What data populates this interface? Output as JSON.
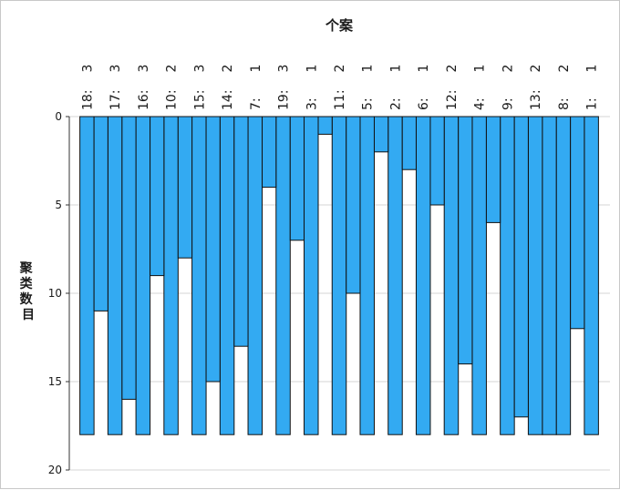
{
  "chart_data": {
    "type": "icicle",
    "title": "个案",
    "ylabel": "聚类数目",
    "ylim": [
      0,
      20
    ],
    "y_ticks": [
      "0",
      "5",
      "10",
      "15",
      "20"
    ],
    "max_clusters": 18,
    "cases": [
      {
        "case": "18:",
        "cluster": "3",
        "join_level": 11
      },
      {
        "case": "17:",
        "cluster": "3",
        "join_level": 16
      },
      {
        "case": "16:",
        "cluster": "3",
        "join_level": 9
      },
      {
        "case": "10:",
        "cluster": "2",
        "join_level": 8
      },
      {
        "case": "15:",
        "cluster": "3",
        "join_level": 15
      },
      {
        "case": "14:",
        "cluster": "2",
        "join_level": 13
      },
      {
        "case": "7:",
        "cluster": "1",
        "join_level": 4
      },
      {
        "case": "19:",
        "cluster": "3",
        "join_level": 7
      },
      {
        "case": "3:",
        "cluster": "1",
        "join_level": 1
      },
      {
        "case": "11:",
        "cluster": "2",
        "join_level": 10
      },
      {
        "case": "5:",
        "cluster": "1",
        "join_level": 2
      },
      {
        "case": "2:",
        "cluster": "1",
        "join_level": 3
      },
      {
        "case": "6:",
        "cluster": "1",
        "join_level": 5
      },
      {
        "case": "12:",
        "cluster": "2",
        "join_level": 14
      },
      {
        "case": "4:",
        "cluster": "1",
        "join_level": 6
      },
      {
        "case": "9:",
        "cluster": "2",
        "join_level": 17
      },
      {
        "case": "13:",
        "cluster": "2",
        "join_level": 18
      },
      {
        "case": "8:",
        "cluster": "2",
        "join_level": 12
      },
      {
        "case": "1:",
        "cluster": "1",
        "join_level": null
      }
    ],
    "bar_color": "#33aaf2",
    "grid": true
  }
}
